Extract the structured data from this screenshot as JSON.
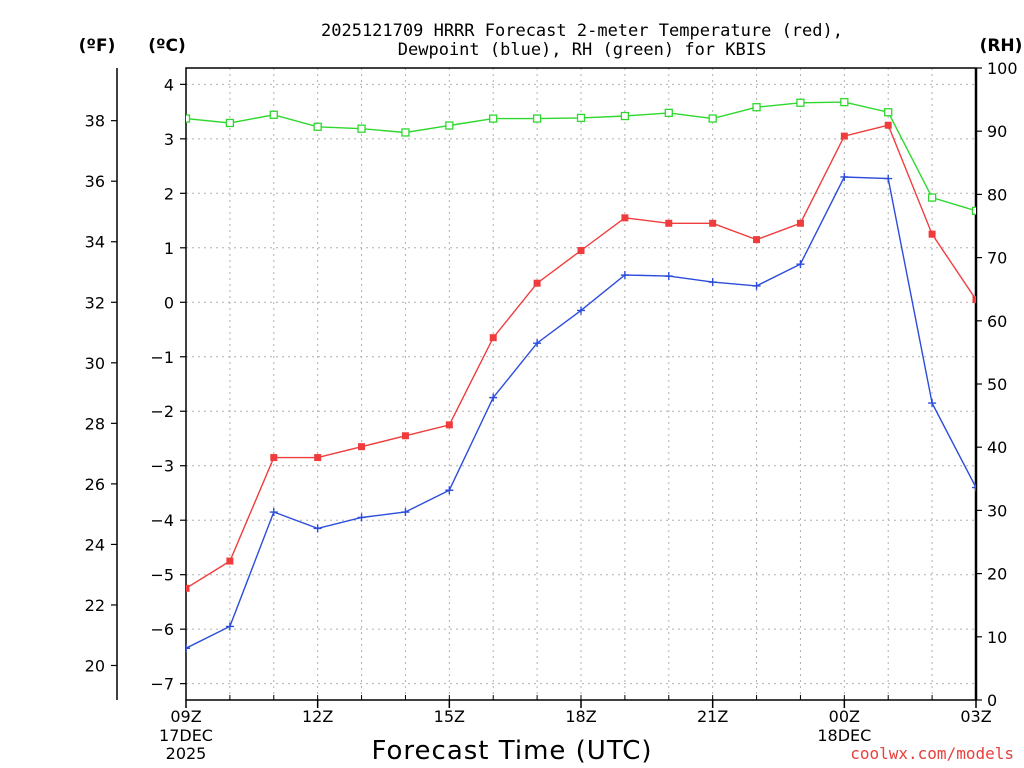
{
  "chart_data": {
    "type": "line",
    "title_line1": "2025121709 HRRR Forecast 2-meter Temperature (red),",
    "title_line2": "Dewpoint (blue), RH (green) for KBIS",
    "xlabel": "Forecast Time (UTC)",
    "units": {
      "fahrenheit": "(ºF)",
      "celsius": "(ºC)",
      "rh": "(RH)"
    },
    "x_hours": [
      9,
      10,
      11,
      12,
      13,
      14,
      15,
      16,
      17,
      18,
      19,
      20,
      21,
      22,
      23,
      24,
      25,
      26,
      27
    ],
    "xlim": [
      9,
      27
    ],
    "x_ticks": [
      {
        "hour": 9,
        "label": "09Z"
      },
      {
        "hour": 12,
        "label": "12Z"
      },
      {
        "hour": 15,
        "label": "15Z"
      },
      {
        "hour": 18,
        "label": "18Z"
      },
      {
        "hour": 21,
        "label": "21Z"
      },
      {
        "hour": 24,
        "label": "00Z"
      },
      {
        "hour": 27,
        "label": "03Z"
      }
    ],
    "date_labels": [
      {
        "hour": 9,
        "line1": "17DEC",
        "line2": "2025"
      },
      {
        "hour": 24,
        "line1": "18DEC",
        "line2": ""
      }
    ],
    "celsius_axis": {
      "range": [
        -7.3,
        4.3
      ],
      "ticks": [
        -7,
        -6,
        -5,
        -4,
        -3,
        -2,
        -1,
        0,
        1,
        2,
        3,
        4
      ]
    },
    "fahrenheit_axis": {
      "ticks": [
        20,
        22,
        24,
        26,
        28,
        30,
        32,
        34,
        36,
        38
      ]
    },
    "rh_axis": {
      "range": [
        0,
        100
      ],
      "ticks": [
        0,
        10,
        20,
        30,
        40,
        50,
        60,
        70,
        80,
        90,
        100
      ]
    },
    "series": [
      {
        "name": "Temperature",
        "color": "#f03c3c",
        "axis": "celsius",
        "marker": "filled-square",
        "values": [
          -5.25,
          -4.75,
          -2.85,
          -2.85,
          -2.65,
          -2.45,
          -2.25,
          -0.65,
          0.35,
          0.95,
          1.55,
          1.45,
          1.45,
          1.15,
          1.45,
          3.05,
          3.25,
          1.25,
          0.05
        ]
      },
      {
        "name": "Dewpoint",
        "color": "#2c4ddc",
        "axis": "celsius",
        "marker": "plus",
        "values": [
          -6.35,
          -5.95,
          -3.85,
          -4.15,
          -3.95,
          -3.85,
          -3.45,
          -1.75,
          -0.75,
          -0.15,
          0.5,
          0.48,
          0.37,
          0.3,
          0.7,
          2.3,
          2.27,
          -1.85,
          -3.4
        ]
      },
      {
        "name": "RH",
        "color": "#2ed82e",
        "axis": "rh",
        "marker": "open-square",
        "values": [
          92,
          91.3,
          92.6,
          90.7,
          90.4,
          89.8,
          90.9,
          92,
          92,
          92.1,
          92.4,
          92.9,
          92,
          93.8,
          94.5,
          94.6,
          93,
          79.5,
          77.4
        ]
      }
    ]
  },
  "credit": "coolwx.com/models"
}
